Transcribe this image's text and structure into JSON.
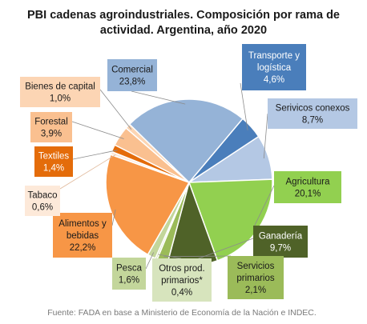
{
  "chart_data": {
    "type": "pie",
    "title_lines": [
      "PBI cadenas agroindustriales. Composición por rama de",
      "actividad. Argentina, año 2020"
    ],
    "slices": [
      {
        "name": "Transporte y logística",
        "name_lines": [
          "Transporte y",
          "logística"
        ],
        "value": 4.6,
        "value_label": "4,6%",
        "color": "#4a7ebb"
      },
      {
        "name": "Serivicos conexos",
        "name_lines": [
          "Serivicos conexos"
        ],
        "value": 8.7,
        "value_label": "8,7%",
        "color": "#b4c8e4"
      },
      {
        "name": "Agricultura",
        "name_lines": [
          "Agricultura"
        ],
        "value": 20.1,
        "value_label": "20,1%",
        "color": "#92d050"
      },
      {
        "name": "Ganadería",
        "name_lines": [
          "Ganadería"
        ],
        "value": 9.7,
        "value_label": "9,7%",
        "color": "#4f6228"
      },
      {
        "name": "Servicios primarios",
        "name_lines": [
          "Servicios",
          "primarios"
        ],
        "value": 2.1,
        "value_label": "2,1%",
        "color": "#9bbb59"
      },
      {
        "name": "Otros prod. primarios*",
        "name_lines": [
          "Otros prod.",
          "primarios*"
        ],
        "value": 0.4,
        "value_label": "0,4%",
        "color": "#d7e4bd"
      },
      {
        "name": "Pesca",
        "name_lines": [
          "Pesca"
        ],
        "value": 1.6,
        "value_label": "1,6%",
        "color": "#c3d69b"
      },
      {
        "name": "Alimentos y bebidas",
        "name_lines": [
          "Alimentos y",
          "bebidas"
        ],
        "value": 22.2,
        "value_label": "22,2%",
        "color": "#f79646"
      },
      {
        "name": "Tabaco",
        "name_lines": [
          "Tabaco"
        ],
        "value": 0.6,
        "value_label": "0,6%",
        "color": "#fde9d9"
      },
      {
        "name": "Textiles",
        "name_lines": [
          "Textiles"
        ],
        "value": 1.4,
        "value_label": "1,4%",
        "color": "#e46c0a"
      },
      {
        "name": "Forestal",
        "name_lines": [
          "Forestal"
        ],
        "value": 3.9,
        "value_label": "3,9%",
        "color": "#fac090"
      },
      {
        "name": "Bienes de capital",
        "name_lines": [
          "Bienes de capital"
        ],
        "value": 1.0,
        "value_label": "1,0%",
        "color": "#fcd5b4"
      },
      {
        "name": "Comercial",
        "name_lines": [
          "Comercial"
        ],
        "value": 23.8,
        "value_label": "23,8%",
        "color": "#95b3d7"
      }
    ],
    "source": "Fuente: FADA en base a Ministerio de Economía de la Nación e INDEC."
  }
}
